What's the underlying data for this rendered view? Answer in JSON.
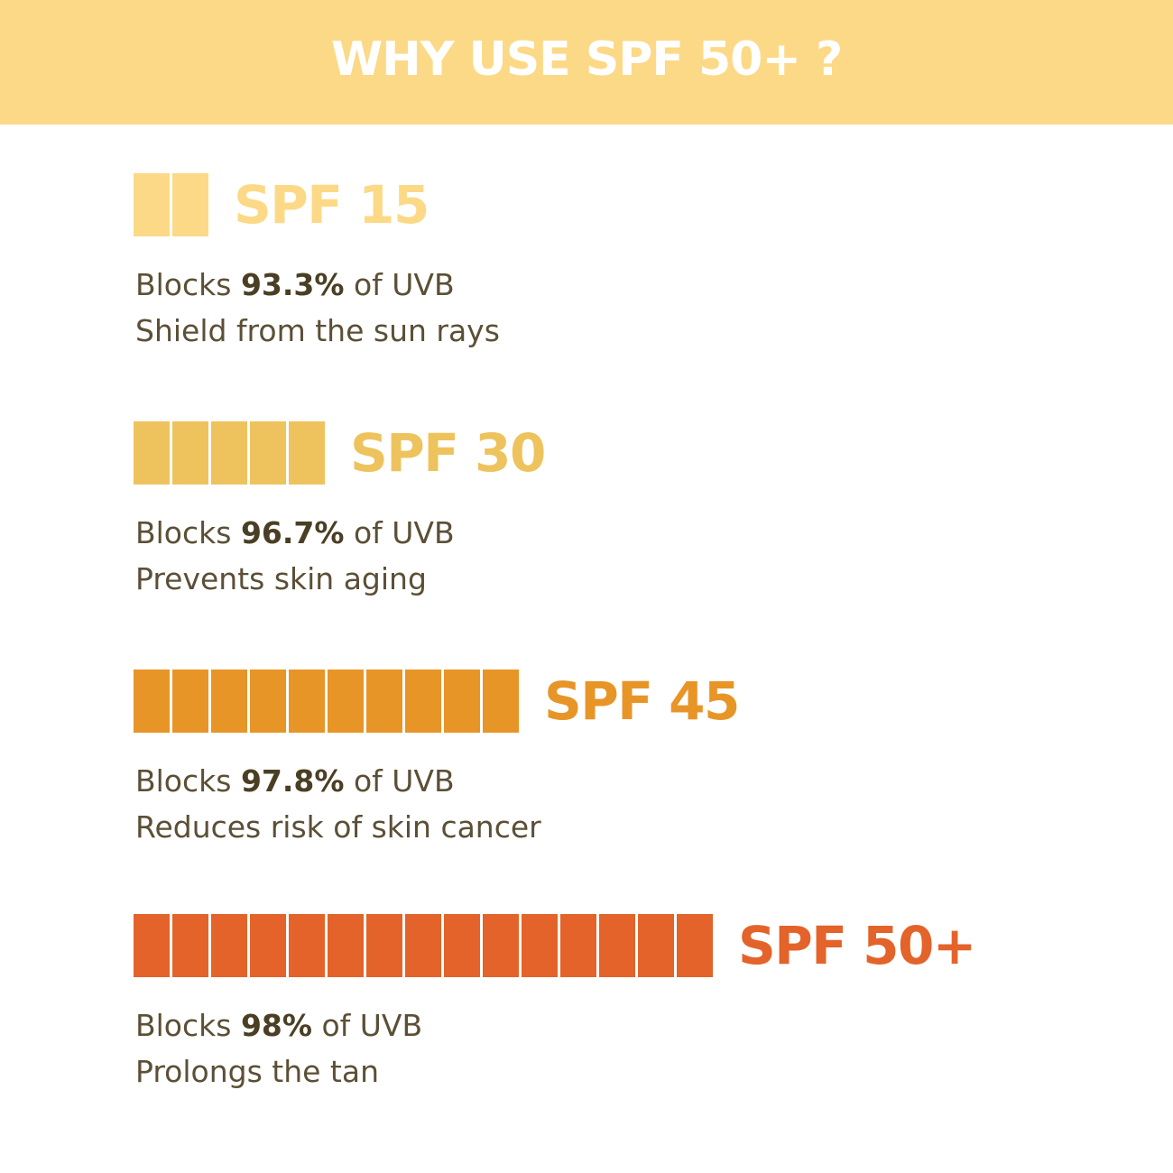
{
  "header": {
    "title": "WHY USE SPF 50+ ?",
    "bg_color": "#fcd986",
    "text_color": "#ffffff"
  },
  "chart_data": {
    "type": "bar",
    "categories": [
      "SPF 15",
      "SPF 30",
      "SPF 45",
      "SPF 50+"
    ],
    "values": [
      2,
      5,
      10,
      15
    ],
    "colors": [
      "#fcd986",
      "#eec35d",
      "#e89528",
      "#e3632a"
    ],
    "items": [
      {
        "label": "SPF 15",
        "blocks_prefix": "Blocks",
        "percent": "93.3%",
        "blocks_suffix": "of UVB",
        "benefit": "Shield from the sun rays"
      },
      {
        "label": "SPF 30",
        "blocks_prefix": "Blocks",
        "percent": "96.7%",
        "blocks_suffix": "of UVB",
        "benefit": "Prevents skin aging"
      },
      {
        "label": "SPF 45",
        "blocks_prefix": "Blocks",
        "percent": "97.8%",
        "blocks_suffix": "of UVB",
        "benefit": "Reduces risk of skin cancer"
      },
      {
        "label": "SPF 50+",
        "blocks_prefix": "Blocks",
        "percent": "98%",
        "blocks_suffix": "of UVB",
        "benefit": "Prolongs the tan"
      }
    ]
  }
}
